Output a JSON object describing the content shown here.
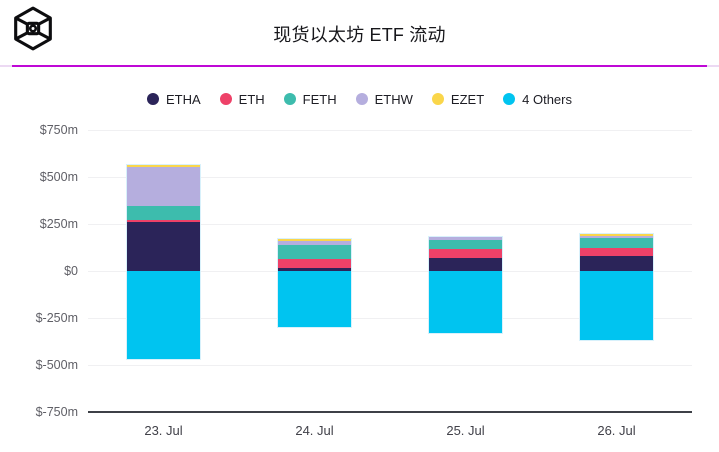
{
  "header": {
    "title": "现货以太坊 ETF 流动",
    "logo_icon": "coinglass-cube-logo",
    "divider_color": "#bf08d6"
  },
  "legend": {
    "items": [
      "ETHA",
      "ETH",
      "FETH",
      "ETHW",
      "EZET",
      "4 Others"
    ]
  },
  "chart_data": {
    "type": "bar",
    "stacked": true,
    "title": "现货以太坊 ETF 流动",
    "unit": "$m",
    "categories": [
      "23. Jul",
      "24. Jul",
      "25. Jul",
      "26. Jul"
    ],
    "series": [
      {
        "name": "ETHA",
        "color": "#2b2459",
        "values": [
          258,
          16,
          70,
          80
        ]
      },
      {
        "name": "ETH",
        "color": "#ee4168",
        "values": [
          15,
          50,
          48,
          43
        ]
      },
      {
        "name": "FETH",
        "color": "#3dbcad",
        "values": [
          75,
          74,
          45,
          53
        ]
      },
      {
        "name": "ETHW",
        "color": "#b5aede",
        "values": [
          205,
          21,
          19,
          8
        ]
      },
      {
        "name": "EZET",
        "color": "#fad64a",
        "values": [
          13,
          10,
          0,
          11
        ]
      },
      {
        "name": "4 Others",
        "color": "#00c4f0",
        "values": [
          -470,
          -300,
          -330,
          -365
        ]
      }
    ],
    "y_ticks": [
      750,
      500,
      250,
      0,
      -250,
      -500,
      -750
    ],
    "y_tick_labels": [
      "$750m",
      "$500m",
      "$250m",
      "$0",
      "$-250m",
      "$-500m",
      "$-750m"
    ],
    "ylim": [
      -750,
      750
    ],
    "grid": "horizontal",
    "legend_position": "top"
  }
}
